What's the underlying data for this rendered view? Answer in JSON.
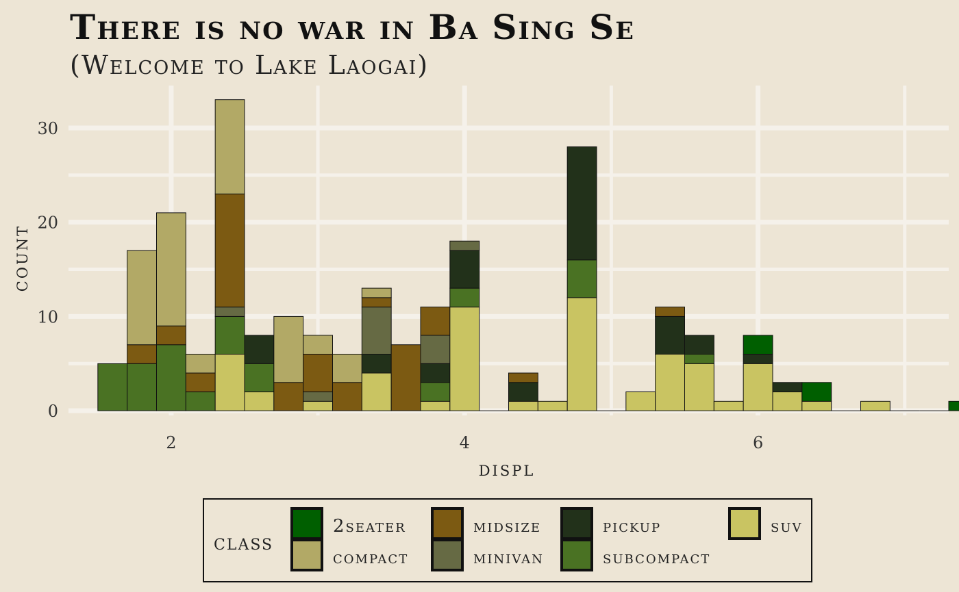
{
  "chart_data": {
    "type": "bar",
    "title": "There is no war in Ba Sing Se",
    "subtitle": "(Welcome to Lake Laogai)",
    "xlabel": "displ",
    "ylabel": "count",
    "xlim": [
      1.3,
      7.3
    ],
    "ylim": [
      -0.5,
      34.5
    ],
    "x_ticks": [
      2,
      4,
      6
    ],
    "y_ticks": [
      0,
      10,
      20,
      30
    ],
    "grid": true,
    "legend_position": "bottom",
    "legend_title": "class",
    "stack_order": [
      "suv",
      "subcompact",
      "pickup",
      "minivan",
      "midsize",
      "compact",
      "2seater"
    ],
    "bins": [
      {
        "x": 1.6,
        "counts": {
          "subcompact": 5
        }
      },
      {
        "x": 1.8,
        "counts": {
          "subcompact": 5,
          "midsize": 2,
          "compact": 10
        }
      },
      {
        "x": 2.0,
        "counts": {
          "subcompact": 7,
          "midsize": 2,
          "compact": 12
        }
      },
      {
        "x": 2.2,
        "counts": {
          "subcompact": 2,
          "midsize": 2,
          "compact": 2
        }
      },
      {
        "x": 2.4,
        "counts": {
          "suv": 6,
          "subcompact": 4,
          "minivan": 1,
          "midsize": 12,
          "compact": 10
        }
      },
      {
        "x": 2.6,
        "counts": {
          "suv": 2,
          "subcompact": 3,
          "pickup": 3
        }
      },
      {
        "x": 2.8,
        "counts": {
          "midsize": 3,
          "compact": 7
        }
      },
      {
        "x": 3.0,
        "counts": {
          "suv": 1,
          "minivan": 1,
          "midsize": 4,
          "compact": 2
        }
      },
      {
        "x": 3.2,
        "counts": {
          "midsize": 3,
          "compact": 3
        }
      },
      {
        "x": 3.4,
        "counts": {
          "suv": 4,
          "pickup": 2,
          "minivan": 5,
          "midsize": 1,
          "compact": 1
        }
      },
      {
        "x": 3.6,
        "counts": {
          "midsize": 7
        }
      },
      {
        "x": 3.8,
        "counts": {
          "suv": 1,
          "subcompact": 2,
          "pickup": 2,
          "minivan": 3,
          "midsize": 3
        }
      },
      {
        "x": 4.0,
        "counts": {
          "suv": 11,
          "subcompact": 2,
          "pickup": 4,
          "minivan": 1
        }
      },
      {
        "x": 4.2,
        "counts": {}
      },
      {
        "x": 4.4,
        "counts": {
          "suv": 1,
          "pickup": 2,
          "midsize": 1
        }
      },
      {
        "x": 4.6,
        "counts": {
          "suv": 1
        }
      },
      {
        "x": 4.8,
        "counts": {
          "suv": 12,
          "subcompact": 4,
          "pickup": 12
        }
      },
      {
        "x": 5.0,
        "counts": {}
      },
      {
        "x": 5.2,
        "counts": {
          "suv": 2
        }
      },
      {
        "x": 5.4,
        "counts": {
          "suv": 6,
          "pickup": 4,
          "midsize": 1
        }
      },
      {
        "x": 5.6,
        "counts": {
          "suv": 5,
          "subcompact": 1,
          "pickup": 2
        }
      },
      {
        "x": 5.8,
        "counts": {
          "suv": 1
        }
      },
      {
        "x": 6.0,
        "counts": {
          "suv": 5,
          "pickup": 1,
          "2seater": 2
        }
      },
      {
        "x": 6.2,
        "counts": {
          "suv": 2,
          "pickup": 1
        }
      },
      {
        "x": 6.4,
        "counts": {
          "suv": 1,
          "2seater": 2
        }
      },
      {
        "x": 6.6,
        "counts": {}
      },
      {
        "x": 6.8,
        "counts": {
          "suv": 1
        }
      },
      {
        "x": 7.0,
        "counts": {}
      },
      {
        "x": 7.2,
        "counts": {}
      },
      {
        "x": 7.4,
        "counts": {
          "2seater": 1
        }
      }
    ],
    "series": [
      {
        "name": "2seater",
        "color": "#005f00"
      },
      {
        "name": "compact",
        "color": "#b2a966"
      },
      {
        "name": "midsize",
        "color": "#7c5a12"
      },
      {
        "name": "minivan",
        "color": "#666a44"
      },
      {
        "name": "pickup",
        "color": "#22311a"
      },
      {
        "name": "subcompact",
        "color": "#4a7223"
      },
      {
        "name": "suv",
        "color": "#c9c462"
      }
    ]
  },
  "colors": {
    "background": "#ede5d5",
    "grid": "#f5f1ea",
    "text": "#222222"
  }
}
